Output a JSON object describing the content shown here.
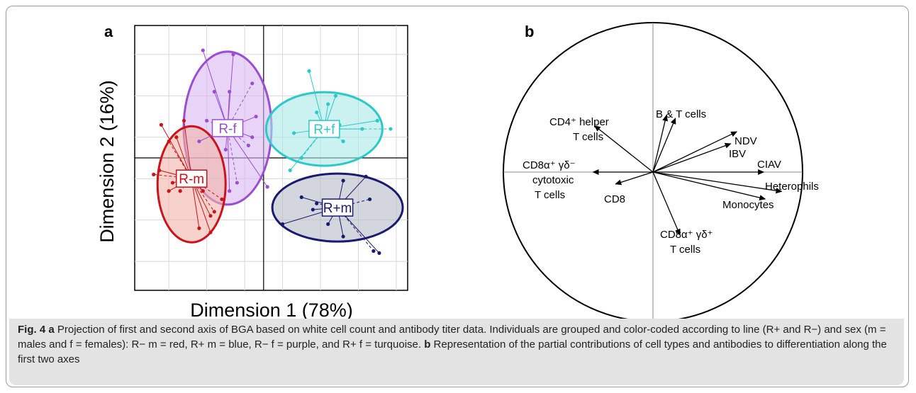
{
  "panel_a_letter": "a",
  "panel_b_letter": "b",
  "chart_data": [
    {
      "type": "scatter",
      "xlabel": "Dimension 1  (78%)",
      "ylabel": "Dimension 2  (16%)",
      "grid": true,
      "groups": [
        {
          "label": "R-f",
          "color": "#9b4fd0",
          "fill": "#d8b8f0",
          "center": [
            -0.95,
            0.72
          ],
          "points": [
            [
              -1.6,
              2.6
            ],
            [
              -0.8,
              2.5
            ],
            [
              -0.3,
              1.8
            ],
            [
              -0.2,
              1.0
            ],
            [
              -0.3,
              0.5
            ],
            [
              -1.5,
              0.9
            ],
            [
              -1.7,
              0.4
            ],
            [
              -1.0,
              0.2
            ],
            [
              -0.7,
              -0.6
            ],
            [
              -0.9,
              -0.8
            ],
            [
              0.1,
              -0.7
            ],
            [
              -0.4,
              0.3
            ],
            [
              -1.3,
              1.6
            ],
            [
              -0.9,
              1.6
            ]
          ]
        },
        {
          "label": "R-m",
          "color": "#c8141a",
          "fill": "#f2b3a8",
          "center": [
            -1.9,
            -0.5
          ],
          "points": [
            [
              -2.7,
              0.8
            ],
            [
              -2.1,
              0.9
            ],
            [
              -2.5,
              0.4
            ],
            [
              -2.3,
              0.5
            ],
            [
              -2.75,
              -0.3
            ],
            [
              -2.9,
              -0.4
            ],
            [
              -2.4,
              -0.6
            ],
            [
              -2.5,
              -0.8
            ],
            [
              -2.2,
              -0.8
            ],
            [
              -1.6,
              -0.8
            ],
            [
              -1.4,
              -1.4
            ],
            [
              -1.3,
              -1.3
            ],
            [
              -1.7,
              -1.7
            ],
            [
              -1.4,
              -1.8
            ],
            [
              -1.1,
              -1.0
            ]
          ]
        },
        {
          "label": "R+f",
          "color": "#2ec8c8",
          "fill": "#a8e8e8",
          "center": [
            1.6,
            0.7
          ],
          "points": [
            [
              1.2,
              2.1
            ],
            [
              1.9,
              1.5
            ],
            [
              2.1,
              0.4
            ],
            [
              2.6,
              0.7
            ],
            [
              3.0,
              0.9
            ],
            [
              3.35,
              0.7
            ],
            [
              0.8,
              0.6
            ],
            [
              0.7,
              -0.3
            ],
            [
              1.0,
              0.0
            ],
            [
              1.4,
              1.1
            ],
            [
              1.7,
              1.3
            ],
            [
              2.0,
              0.8
            ]
          ]
        },
        {
          "label": "R+m",
          "color": "#1a1a6e",
          "fill": "#b8bac8",
          "center": [
            1.95,
            -1.2
          ],
          "points": [
            [
              1.0,
              -0.95
            ],
            [
              0.5,
              -1.6
            ],
            [
              1.4,
              -1.1
            ],
            [
              2.1,
              -0.55
            ],
            [
              2.7,
              -0.45
            ],
            [
              2.8,
              -1.0
            ],
            [
              2.1,
              -1.9
            ],
            [
              3.05,
              -2.3
            ],
            [
              2.9,
              -2.25
            ],
            [
              1.7,
              -1.6
            ],
            [
              1.3,
              -1.25
            ]
          ]
        }
      ]
    },
    {
      "type": "correlation-circle",
      "variables": [
        {
          "label": "CD4⁺ helper",
          "label2": "T cells",
          "dx": -0.39,
          "dy": 0.31
        },
        {
          "label": "B & T cells",
          "dx": 0.09,
          "dy": 0.38
        },
        {
          "label": "",
          "dx": 0.15,
          "dy": 0.36
        },
        {
          "label": "NDV",
          "dx": 0.56,
          "dy": 0.27
        },
        {
          "label": "IBV",
          "dx": 0.52,
          "dy": 0.19
        },
        {
          "label": "CIAV",
          "dx": 0.74,
          "dy": 0.0
        },
        {
          "label": "Heterophils",
          "dx": 0.86,
          "dy": -0.13
        },
        {
          "label": "Monocytes",
          "dx": 0.75,
          "dy": -0.18
        },
        {
          "label": "CD8α⁺ γδ⁺",
          "label2": "T cells",
          "dx": 0.18,
          "dy": -0.42
        },
        {
          "label": "CD8α⁺ γδ⁻",
          "label2": "cytotoxic",
          "label3": "T cells",
          "dx": -0.4,
          "dy": 0.0
        },
        {
          "label": "CD8",
          "dx": -0.25,
          "dy": -0.08
        }
      ]
    }
  ],
  "caption": {
    "figno": "Fig. 4",
    "a_letter": "a",
    "a_text": " Projection of first and second axis of BGA based on white cell count and antibody titer data. Individuals are grouped and color-coded according to line (R+ and R−) and sex (m = males and f = females): R− m = red, R+ m = blue, R− f = purple, and R+ f = turquoise. ",
    "b_letter": "b",
    "b_text": " Representation of the partial contributions of cell types and antibodies to differentiation along the first two axes"
  }
}
